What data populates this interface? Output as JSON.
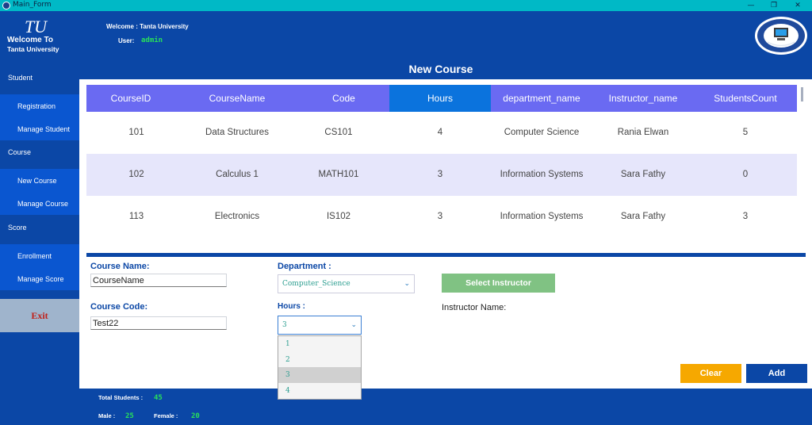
{
  "window": {
    "title": "Main_Form",
    "minimize": "—",
    "restore": "❐",
    "close": "✕"
  },
  "header": {
    "logo_text": "TU",
    "logo_welcome": "Welcome To",
    "logo_university": "Tanta University",
    "welcome_line": "Welcome : Tanta University",
    "user_label": "User:",
    "user_value": "admin",
    "seal_icon": "faculty-seal-icon"
  },
  "sidebar": {
    "sections": [
      {
        "label": "Student",
        "items": [
          {
            "label": "Registration"
          },
          {
            "label": "Manage Student"
          }
        ]
      },
      {
        "label": "Course",
        "items": [
          {
            "label": "New Course"
          },
          {
            "label": "Manage Course"
          }
        ]
      },
      {
        "label": "Score",
        "items": [
          {
            "label": "Enrollment"
          },
          {
            "label": "Manage Score"
          }
        ]
      }
    ],
    "exit_label": "Exit"
  },
  "main": {
    "title": "New Course",
    "grid": {
      "columns": [
        "CourseID",
        "CourseName",
        "Code",
        "Hours",
        "department_name",
        "Instructor_name",
        "StudentsCount"
      ],
      "active_column": "Hours",
      "rows": [
        [
          "101",
          "Data Structures",
          "CS101",
          "4",
          "Computer Science",
          "Rania Elwan",
          "5"
        ],
        [
          "102",
          "Calculus 1",
          "MATH101",
          "3",
          "Information Systems",
          "Sara Fathy",
          "0"
        ],
        [
          "113",
          "Electronics",
          "IS102",
          "3",
          "Information Systems",
          "Sara Fathy",
          "3"
        ]
      ]
    },
    "form": {
      "course_name_label": "Course Name:",
      "course_name_value": "CourseName",
      "course_code_label": "Course Code:",
      "course_code_value": "Test22",
      "department_label": "Department :",
      "department_value": "Computer_Science",
      "hours_label": "Hours :",
      "hours_value": "3",
      "hours_options": [
        "1",
        "2",
        "3",
        "4"
      ],
      "select_instructor_label": "Select Instructor",
      "instructor_name_label": "Instructor Name:",
      "clear_label": "Clear",
      "add_label": "Add"
    }
  },
  "footer": {
    "total_label": "Total Students :",
    "total_value": "45",
    "male_label": "Male :",
    "male_value": "25",
    "female_label": "Female :",
    "female_value": "20"
  },
  "colors": {
    "primary_blue": "#0b47a6",
    "sidebar_item": "#0a56d0",
    "grid_header": "#6a6af2",
    "grid_header_active": "#0b73dd",
    "grid_alt_row": "#e6e6fb",
    "titlebar": "#00b9c6",
    "accent_green": "#28e05a",
    "select_button": "#80c283",
    "clear_button": "#f6a800",
    "exit_bg": "#9fb4cc",
    "exit_text": "#c0211a"
  }
}
